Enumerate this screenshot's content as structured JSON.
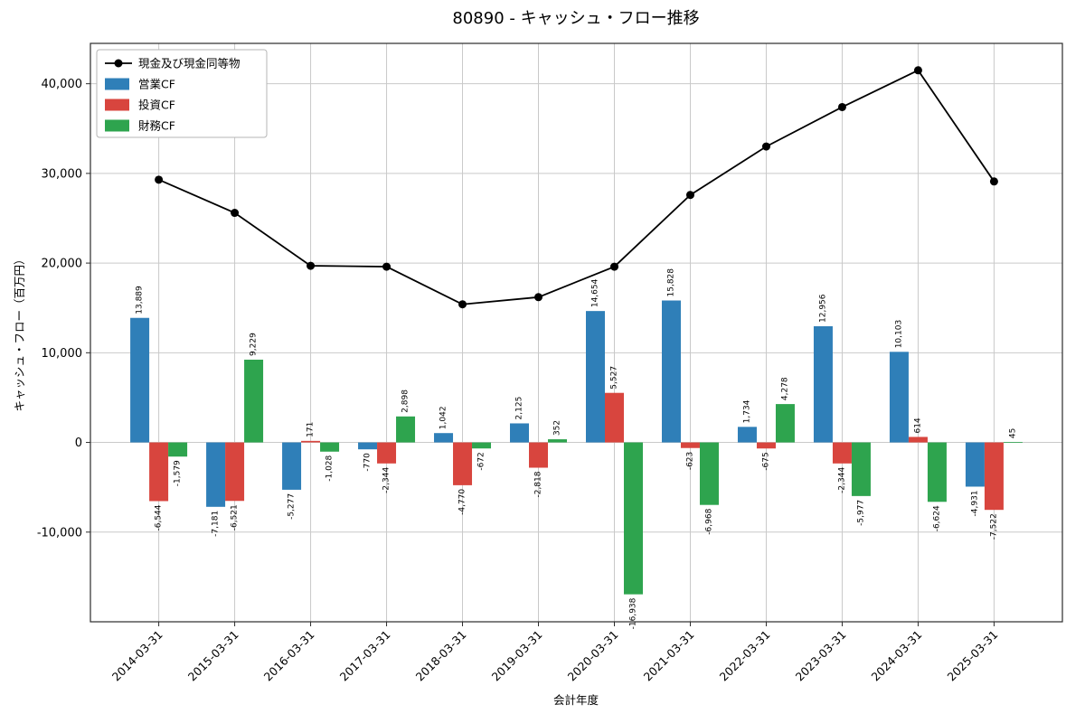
{
  "title": "80890 - キャッシュ・フロー推移",
  "chart_data": {
    "type": "bar",
    "subtype": "grouped-bars-with-line",
    "categories": [
      "2014-03-31",
      "2015-03-31",
      "2016-03-31",
      "2017-03-31",
      "2018-03-31",
      "2019-03-31",
      "2020-03-31",
      "2021-03-31",
      "2022-03-31",
      "2023-03-31",
      "2024-03-31",
      "2025-03-31"
    ],
    "series": [
      {
        "name": "営業CF",
        "type": "bar",
        "color": "#2f7fb8",
        "values": [
          13889,
          -7181,
          -5277,
          -770,
          1042,
          2125,
          14654,
          15828,
          1734,
          12956,
          10103,
          -4931
        ]
      },
      {
        "name": "投資CF",
        "type": "bar",
        "color": "#d8453e",
        "values": [
          -6544,
          -6521,
          171,
          -2344,
          -4770,
          -2818,
          5527,
          -623,
          -675,
          -2344,
          614,
          -7522
        ]
      },
      {
        "name": "財務CF",
        "type": "bar",
        "color": "#2ea44e",
        "values": [
          -1579,
          9229,
          -1028,
          2898,
          -672,
          352,
          -16938,
          -6968,
          4278,
          -5977,
          -6624,
          45
        ]
      },
      {
        "name": "現金及び現金同等物",
        "type": "line",
        "color": "#000000",
        "values": [
          29300,
          25600,
          19700,
          19600,
          15400,
          16200,
          19600,
          27600,
          33000,
          37400,
          41500,
          29100
        ]
      }
    ],
    "legend": [
      "現金及び現金同等物",
      "営業CF",
      "投資CF",
      "財務CF"
    ],
    "legend_position": "upper-left",
    "title": "80890 - キャッシュ・フロー推移",
    "xlabel": "会計年度",
    "ylabel": "キャッシュ・フロー（百万円）",
    "yticks": [
      -10000,
      0,
      10000,
      20000,
      30000,
      40000
    ],
    "ylim": [
      -20000,
      44500
    ],
    "grid": true,
    "bar_value_labels": true
  }
}
